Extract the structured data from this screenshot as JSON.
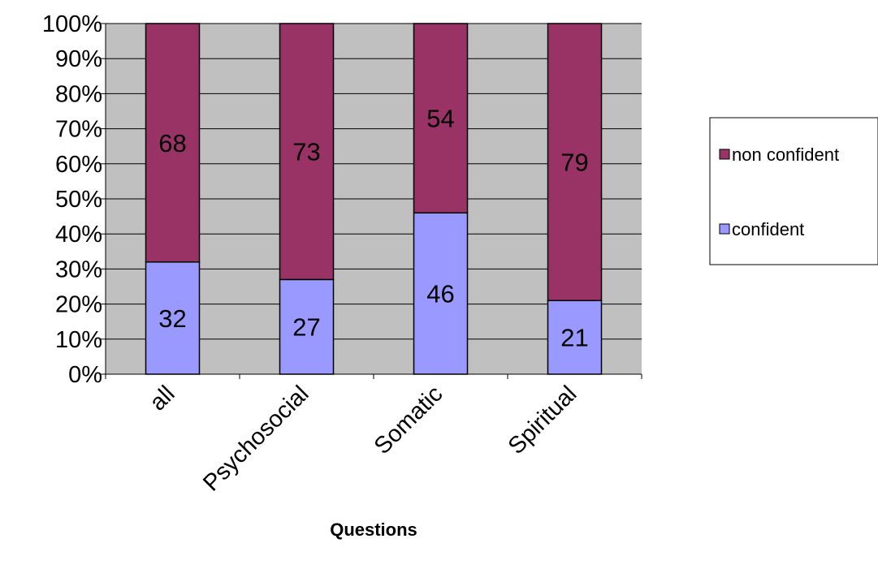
{
  "chart_data": {
    "type": "bar",
    "stacked": true,
    "percent_stacked": true,
    "categories": [
      "all",
      "Psychosocial",
      "Somatic",
      "Spiritual"
    ],
    "series": [
      {
        "name": "confident",
        "values": [
          32,
          27,
          46,
          21
        ],
        "color": "#9999ff"
      },
      {
        "name": "non confident",
        "values": [
          68,
          73,
          54,
          79
        ],
        "color": "#993366"
      }
    ],
    "title": "",
    "xlabel": "Questions",
    "ylabel": "",
    "ylim": [
      0,
      100
    ],
    "yticks": [
      "0%",
      "10%",
      "20%",
      "30%",
      "40%",
      "50%",
      "60%",
      "70%",
      "80%",
      "90%",
      "100%"
    ],
    "grid": true,
    "plot_background": "#c0c0c0",
    "legend": {
      "placement": "right",
      "entries": [
        "non confident",
        "confident"
      ]
    }
  }
}
